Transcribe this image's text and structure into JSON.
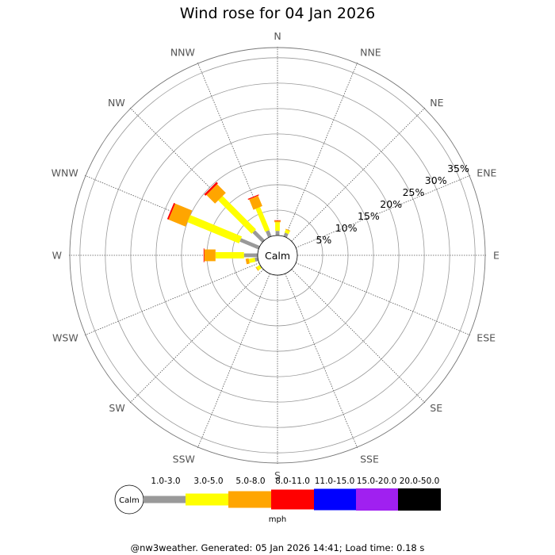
{
  "chart_data": {
    "type": "wind-rose",
    "title": "Wind rose for 04 Jan 2026",
    "directions": [
      "N",
      "NNE",
      "NE",
      "ENE",
      "E",
      "ESE",
      "SE",
      "SSE",
      "S",
      "SSW",
      "SW",
      "WSW",
      "W",
      "WNW",
      "NW",
      "NNW"
    ],
    "ring_percent_values": [
      5,
      10,
      15,
      20,
      25,
      30,
      35
    ],
    "ring_labels": [
      "5%",
      "10%",
      "15%",
      "20%",
      "25%",
      "30%",
      "35%"
    ],
    "calm_label": "Calm",
    "speed_bins": [
      {
        "label": "1.0-3.0",
        "color": "#999999"
      },
      {
        "label": "3.0-5.0",
        "color": "#ffff00"
      },
      {
        "label": "5.0-8.0",
        "color": "#ffa500"
      },
      {
        "label": "8.0-11.0",
        "color": "#ff0000"
      },
      {
        "label": "11.0-15.0",
        "color": "#0000ff"
      },
      {
        "label": "15.0-20.0",
        "color": "#a020f0"
      },
      {
        "label": "20.0-50.0",
        "color": "#000000"
      }
    ],
    "unit": "mph",
    "frequencies_percent": {
      "N": [
        0.9,
        1.7,
        0.3,
        0.1,
        0,
        0,
        0
      ],
      "NNE": [
        0.8,
        0.6,
        0.15,
        0,
        0,
        0,
        0
      ],
      "NE": [
        0,
        0,
        0,
        0,
        0,
        0,
        0
      ],
      "ENE": [
        0,
        0,
        0,
        0,
        0,
        0,
        0
      ],
      "E": [
        0,
        0,
        0,
        0,
        0,
        0,
        0
      ],
      "ESE": [
        0,
        0,
        0,
        0,
        0,
        0,
        0
      ],
      "SE": [
        0,
        0,
        0,
        0,
        0,
        0,
        0
      ],
      "SSE": [
        0,
        0,
        0,
        0,
        0,
        0,
        0
      ],
      "S": [
        0,
        0,
        0,
        0,
        0,
        0,
        0
      ],
      "SSW": [
        0,
        0,
        0,
        0,
        0,
        0,
        0
      ],
      "SW": [
        0,
        0,
        0,
        0,
        0,
        0,
        0
      ],
      "WSW": [
        0,
        0,
        0,
        0,
        0,
        0,
        0
      ],
      "W": [
        2.7,
        5.6,
        2.2,
        0.15,
        0,
        0,
        0
      ],
      "WNW": [
        4.0,
        11.0,
        3.6,
        0.3,
        0,
        0,
        0
      ],
      "NW": [
        2.7,
        9.3,
        2.4,
        0.4,
        0,
        0,
        0
      ],
      "NNW": [
        1.3,
        4.9,
        2.2,
        0.2,
        0,
        0,
        0
      ],
      "extra_W_WSW": [
        0.6,
        1.2,
        0.6,
        0,
        0,
        0,
        0
      ],
      "extra_WSW_SW": [
        0.15,
        0.7,
        0.15,
        0,
        0,
        0,
        0
      ]
    }
  },
  "footer": "@nw3weather. Generated: 05 Jan 2026 14:41; Load time: 0.18 s"
}
